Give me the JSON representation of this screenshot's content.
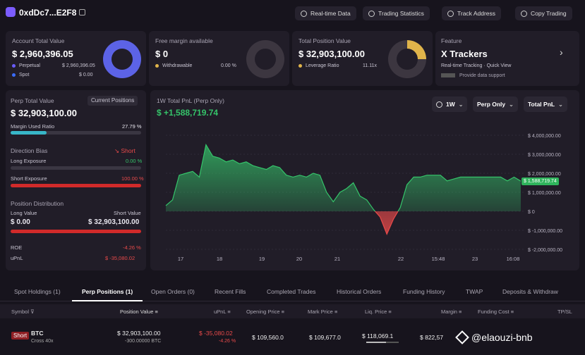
{
  "header": {
    "address": "0xdDc7...E2F8",
    "buttons": [
      "Real-time Data",
      "Trading Statistics",
      "Track Address",
      "Copy Trading"
    ]
  },
  "account": {
    "label": "Account Total Value",
    "value": "$ 2,960,396.05",
    "perp_label": "Perpetual",
    "perp_value": "$ 2,960,396.05",
    "spot_label": "Spot",
    "spot_value": "$ 0.00"
  },
  "margin": {
    "label": "Free margin available",
    "value": "$ 0",
    "withdraw_label": "Withdrawable",
    "withdraw_value": "0.00 %"
  },
  "position": {
    "label": "Total Position Value",
    "value": "$ 32,903,100.00",
    "lev_label": "Leverage Ratio",
    "lev_value": "11.11x"
  },
  "feature": {
    "label": "Feature",
    "title": "X Trackers",
    "line1": "Real-time Tracking · Quick View",
    "line2": "Provide data support"
  },
  "perp": {
    "label": "Perp Total Value",
    "current_btn": "Current Positions",
    "value": "$ 32,903,100.00",
    "margin_used_label": "Margin Used Ratio",
    "margin_used_value": "27.79 %",
    "margin_used_fraction": 0.2779,
    "bias_label": "Direction Bias",
    "bias_value": "Short",
    "long_exp_label": "Long Exposure",
    "long_exp_value": "0.00 %",
    "short_exp_label": "Short Exposure",
    "short_exp_value": "100.00 %",
    "dist_label": "Position Distribution",
    "long_value_label": "Long Value",
    "short_value_label": "Short Value",
    "long_value": "$ 0.00",
    "short_value": "$ 32,903,100.00",
    "roe_label": "ROE",
    "roe_value": "-4.26 %",
    "upnl_label": "uPnL",
    "upnl_value": "$ -35,080.02"
  },
  "chart_panel": {
    "title": "1W Total PnL (Perp Only)",
    "pnl_value": "$ +1,588,719.74",
    "period": "1W",
    "filter": "Perp Only",
    "metric": "Total PnL",
    "current_tag": "$ 1,588,719.74"
  },
  "chart_data": {
    "type": "area",
    "x_tick_labels": [
      "17",
      "18",
      "19",
      "20",
      "21",
      "22",
      "15:48",
      "23",
      "16:08"
    ],
    "y_tick_labels": [
      "$ 4,000,000.00",
      "$ 3,000,000.00",
      "$ 2,000,000.00",
      "$ 1,000,000.00",
      "$ 0",
      "$ -1,000,000.00",
      "$ -2,000,000.00"
    ],
    "ylim": [
      -2000000,
      4000000
    ],
    "values": [
      300000,
      600000,
      1900000,
      2000000,
      2100000,
      1800000,
      3500000,
      2900000,
      2800000,
      2600000,
      2700000,
      2500000,
      2600000,
      2400000,
      2300000,
      2200000,
      2400000,
      2300000,
      1900000,
      1800000,
      1900000,
      1800000,
      2000000,
      1900000,
      1000000,
      500000,
      1000000,
      1200000,
      1500000,
      800000,
      600000,
      100000,
      -300000,
      -1200000,
      -400000,
      200000,
      1400000,
      1800000,
      1800000,
      1900000,
      1900000,
      1900000,
      1600000,
      1700000,
      1800000,
      1800000,
      1800000,
      1800000,
      1800000,
      1800000,
      1800000,
      1600000,
      1800000,
      1588719
    ]
  },
  "tabs": [
    "Spot Holdings (1)",
    "Perp Positions (1)",
    "Open Orders (0)",
    "Recent Fills",
    "Completed Trades",
    "Historical Orders",
    "Funding History",
    "TWAP",
    "Deposits & Withdraw"
  ],
  "table": {
    "headers": [
      "Symbol",
      "Position Value",
      "uPnL",
      "Opening Price",
      "Mark Price",
      "Liq. Price",
      "Margin",
      "Funding Cost",
      "TP/SL"
    ],
    "row": {
      "side": "Short",
      "symbol": "BTC",
      "mode": "Cross 40x",
      "value": "$ 32,903,100.00",
      "size": "-300.00000 BTC",
      "upnl": "$ -35,080.02",
      "upnl_pct": "-4.26 %",
      "open": "$ 109,560.0",
      "mark": "$ 109,677.0",
      "liq": "$ 118,069.1",
      "margin": "$ 822,57"
    }
  },
  "watermark": "@elaouzi-bnb",
  "colors": {
    "accent": "#7b5cff",
    "positive": "#35c46a",
    "negative": "#e84a4a",
    "teal": "#38b6c8",
    "gold": "#e0b44a"
  }
}
